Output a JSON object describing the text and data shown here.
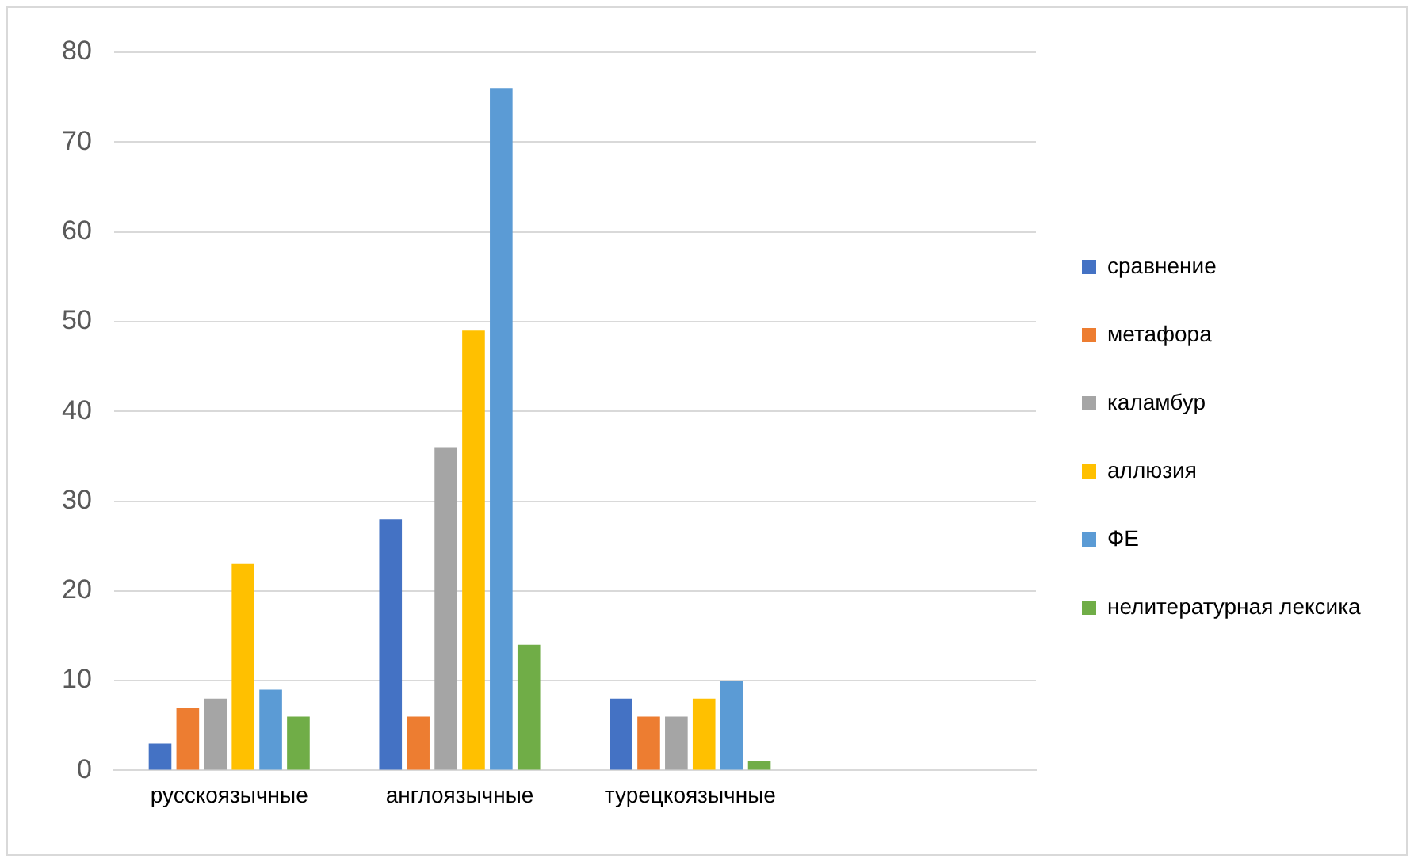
{
  "chart_data": {
    "type": "bar",
    "categories": [
      "русскоязычные",
      "англоязычные",
      "турецкоязычные",
      null
    ],
    "series": [
      {
        "name": "сравнение",
        "color": "#4472c4",
        "values": [
          3,
          28,
          8,
          null
        ]
      },
      {
        "name": "метафора",
        "color": "#ed7d31",
        "values": [
          7,
          6,
          6,
          null
        ]
      },
      {
        "name": "каламбур",
        "color": "#a5a5a5",
        "values": [
          8,
          36,
          6,
          null
        ]
      },
      {
        "name": "аллюзия",
        "color": "#ffc000",
        "values": [
          23,
          49,
          8,
          null
        ]
      },
      {
        "name": "ФЕ",
        "color": "#5b9bd5",
        "values": [
          9,
          76,
          10,
          null
        ]
      },
      {
        "name": "нелитературная лексика",
        "color": "#70ad47",
        "values": [
          6,
          14,
          1,
          null
        ]
      }
    ],
    "ylim": [
      0,
      80
    ],
    "yticks": [
      0,
      10,
      20,
      30,
      40,
      50,
      60,
      70,
      80
    ],
    "grid": "y",
    "legend": "right"
  }
}
